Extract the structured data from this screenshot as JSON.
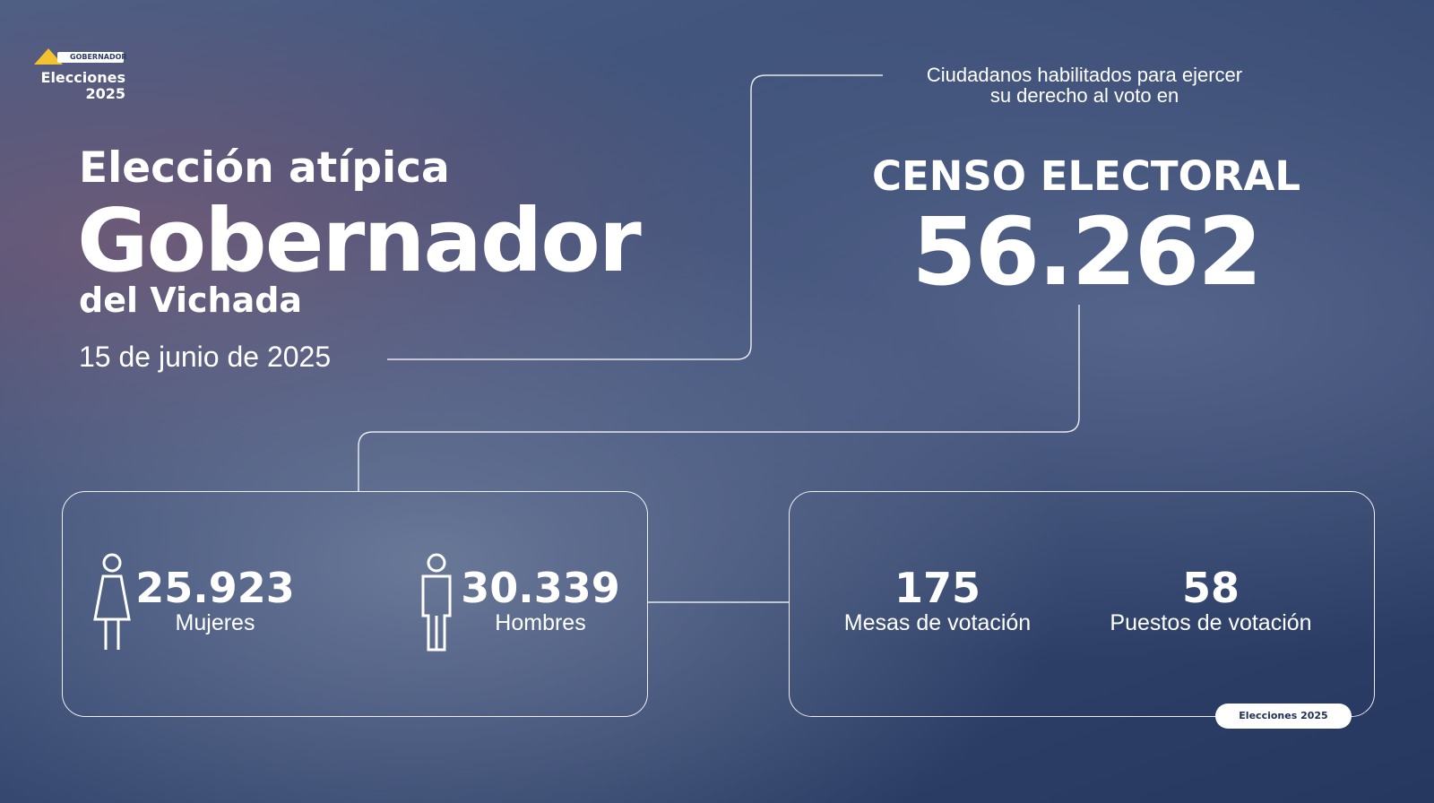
{
  "logo": {
    "top": "GOBERNADOR",
    "line1": "Elecciones",
    "line2": "2025"
  },
  "header": {
    "kicker": "Elección atípica",
    "title": "Gobernador",
    "subtitle": "del Vichada",
    "date": "15 de junio de 2025"
  },
  "censo": {
    "intro": [
      "Ciudadanos habilitados para ejercer",
      "su derecho al voto en"
    ],
    "label": "CENSO ELECTORAL",
    "value": "56.262"
  },
  "gender": [
    {
      "value": "25.923",
      "label": "Mujeres"
    },
    {
      "value": "30.339",
      "label": "Hombres"
    }
  ],
  "voting": [
    {
      "value": "175",
      "label": "Mesas de votación"
    },
    {
      "value": "58",
      "label": "Puestos de votación"
    }
  ],
  "badge": "Elecciones 2025"
}
